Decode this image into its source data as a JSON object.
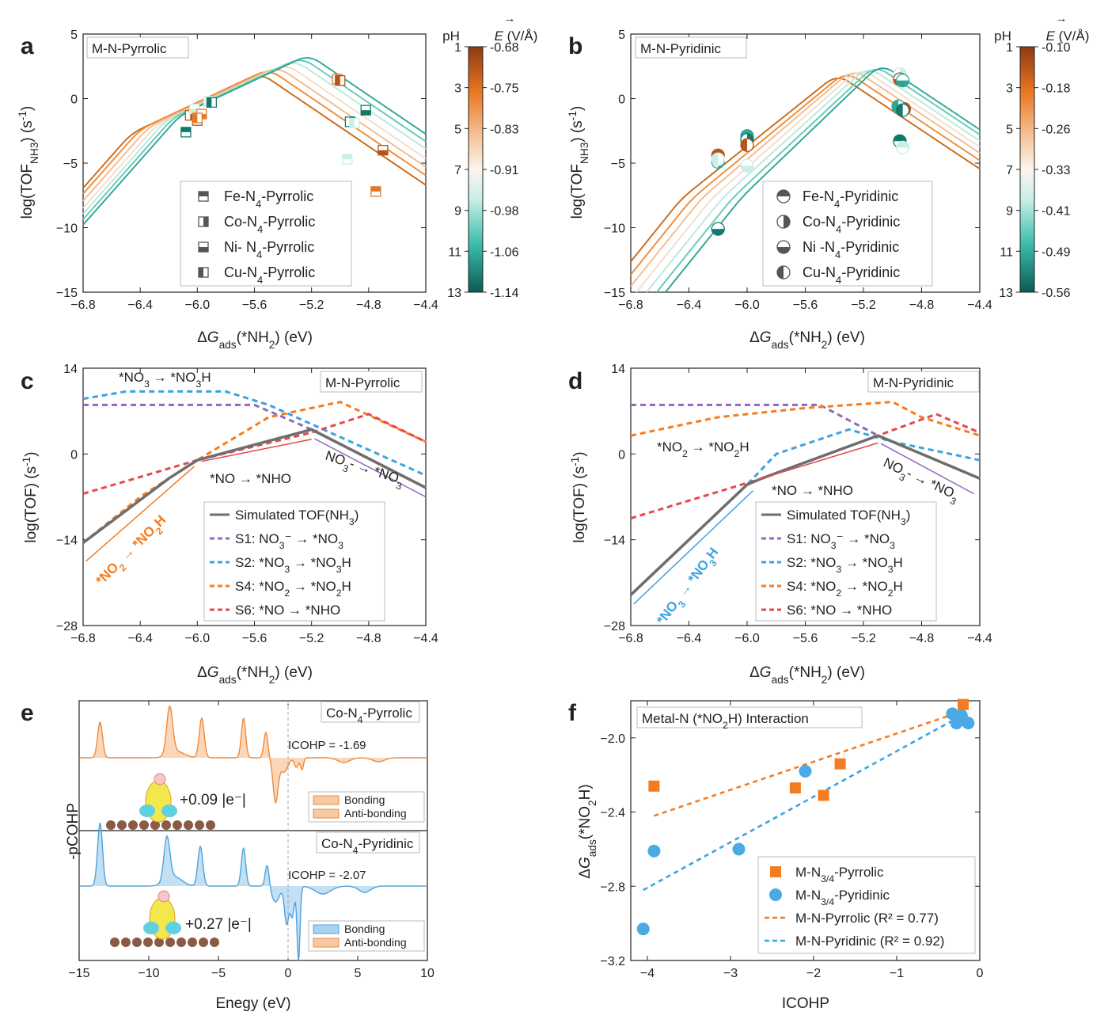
{
  "colors": {
    "orange": "#f47c20",
    "blue": "#3ba3e0",
    "purple": "#9467bd",
    "red": "#e5484d",
    "gray": "#6e6e6e",
    "teal_dark": "#137a6e",
    "brown": "#b5541c"
  },
  "panels": {
    "a": {
      "letter": "a",
      "label": "M-N-Pyrrolic",
      "ylabel_html": "log(TOF_NH3) (s^-1)",
      "xlabel": "ΔG_ads(*NH2) (eV)"
    },
    "b": {
      "letter": "b",
      "label": "M-N-Pyridinic",
      "ylabel_html": "log(TOF_NH3) (s^-1)",
      "xlabel": "ΔG_ads(*NH2) (eV)"
    },
    "c": {
      "letter": "c",
      "label": "M-N-Pyrrolic",
      "ylabel": "log(TOF) (s^-1)",
      "xlabel": "ΔG_ads(*NH2) (eV)"
    },
    "d": {
      "letter": "d",
      "label": "M-N-Pyridinic",
      "ylabel": "log(TOF) (s^-1)",
      "xlabel": "ΔG_ads(*NH2) (eV)"
    },
    "e": {
      "letter": "e",
      "ylabel": "-pCOHP",
      "xlabel": "Enegy (eV)",
      "top_label": "Co-N4-Pyrrolic",
      "bottom_label": "Co-N4-Pyridinic",
      "icohp_top": "ICOHP = -1.69",
      "icohp_bottom": "ICOHP = -2.07",
      "charge_top": "+0.09 |e⁻|",
      "charge_bottom": "+0.27 |e⁻|",
      "legend": [
        "Bonding",
        "Anti-bonding"
      ]
    },
    "f": {
      "letter": "f",
      "label": "Metal-N (*NO2H) Interaction",
      "ylabel": "ΔG_ads(*NO2H)",
      "xlabel": "ICOHP"
    }
  },
  "colorbar_a": {
    "ph_title": "pH",
    "e_title": "E (V/Å)",
    "ph": [
      "1",
      "3",
      "5",
      "7",
      "9",
      "11",
      "13"
    ],
    "e": [
      "-0.68",
      "-0.75",
      "-0.83",
      "-0.91",
      "-0.98",
      "-1.06",
      "-1.14"
    ]
  },
  "colorbar_b": {
    "ph_title": "pH",
    "e_title": "E (V/Å)",
    "ph": [
      "1",
      "3",
      "5",
      "7",
      "9",
      "11",
      "13"
    ],
    "e": [
      "-0.10",
      "-0.18",
      "-0.26",
      "-0.33",
      "-0.41",
      "-0.49",
      "-0.56"
    ]
  },
  "legend_a": [
    "Fe-N4-Pyrrolic",
    "Co-N4-Pyrrolic",
    "Ni- N4-Pyrrolic",
    "Cu-N4-Pyrrolic"
  ],
  "legend_b": [
    "Fe-N4-Pyridinic",
    "Co-N4-Pyridinic",
    "Ni -N4-Pyridinic",
    "Cu-N4-Pyridinic"
  ],
  "legend_cd": [
    "Simulated TOF(NH3)",
    "S1: NO3⁻ → *NO3",
    "S2: *NO3 → *NO3H",
    "S4: *NO2 → *NO2H",
    "S6: *NO → *NHO"
  ],
  "annotations_c": [
    "*NO3 → *NO3H",
    "*NO → *NHO",
    "NO3⁻ → *NO3",
    "*NO2 → *NO2H"
  ],
  "annotations_d": [
    "*NO2 → *NO2H",
    "*NO → *NHO",
    "NO3⁻ → *NO3",
    "*NO3 → *NO3H"
  ],
  "legend_f": [
    "M-N3/4-Pyrrolic",
    "M-N3/4-Pyridinic",
    "M-N-Pyrrolic (R² = 0.77)",
    "M-N-Pyridinic (R² = 0.92)"
  ],
  "chart_data": [
    {
      "panel": "a",
      "type": "line",
      "xlim": [
        -6.8,
        -4.4
      ],
      "ylim": [
        -15,
        5
      ],
      "xticks": [
        -6.8,
        -6.4,
        -6.0,
        -5.6,
        -5.2,
        -4.8,
        -4.4
      ],
      "yticks": [
        -15,
        -10,
        -5,
        0,
        5
      ],
      "series_description": "volcano curves for pH 1 to 13",
      "volcano_peaks": [
        [
          -5.56,
          2.0
        ],
        [
          -5.5,
          2.3
        ],
        [
          -5.44,
          2.5
        ],
        [
          -5.38,
          2.7
        ],
        [
          -5.32,
          3.0
        ],
        [
          -5.27,
          3.2
        ],
        [
          -5.22,
          3.4
        ]
      ],
      "points": {
        "Fe": [
          [
            -6.08,
            -2.6
          ],
          [
            -6.0,
            -1.7
          ],
          [
            -4.95,
            -4.7
          ],
          [
            -4.75,
            -7.2
          ]
        ],
        "Co": [
          [
            -6.05,
            -1.3
          ],
          [
            -5.92,
            -0.2
          ],
          [
            -5.02,
            1.5
          ],
          [
            -4.93,
            -1.8
          ]
        ],
        "Ni": [
          [
            -6.02,
            -0.8
          ],
          [
            -5.97,
            -1.2
          ],
          [
            -4.82,
            -0.9
          ],
          [
            -4.7,
            -4.0
          ]
        ],
        "Cu": [
          [
            -6.0,
            -1.5
          ],
          [
            -5.9,
            -0.3
          ],
          [
            -5.0,
            1.4
          ],
          [
            -4.9,
            -1.9
          ]
        ]
      }
    },
    {
      "panel": "b",
      "type": "line",
      "xlim": [
        -6.8,
        -4.4
      ],
      "ylim": [
        -15,
        5
      ],
      "xticks": [
        -6.8,
        -6.4,
        -6.0,
        -5.6,
        -5.2,
        -4.8,
        -4.4
      ],
      "yticks": [
        -15,
        -10,
        -5,
        0,
        5
      ],
      "volcano_peaks": [
        [
          -5.38,
          1.9
        ],
        [
          -5.32,
          2.1
        ],
        [
          -5.27,
          2.3
        ],
        [
          -5.22,
          2.4
        ],
        [
          -5.17,
          2.5
        ],
        [
          -5.12,
          2.6
        ],
        [
          -5.08,
          2.7
        ]
      ],
      "points": {
        "Fe": [
          [
            -6.2,
            -4.4
          ],
          [
            -6.0,
            -2.9
          ],
          [
            -4.95,
            -3.3
          ],
          [
            -4.93,
            -3.8
          ]
        ],
        "Co": [
          [
            -6.2,
            -4.9
          ],
          [
            -6.0,
            -3.2
          ],
          [
            -4.95,
            1.9
          ],
          [
            -4.92,
            -0.8
          ]
        ],
        "Ni": [
          [
            -6.2,
            -10.1
          ],
          [
            -6.0,
            -5.2
          ],
          [
            -4.95,
            1.5
          ],
          [
            -4.93,
            1.4
          ]
        ],
        "Cu": [
          [
            -6.2,
            -4.7
          ],
          [
            -6.0,
            -3.6
          ],
          [
            -4.96,
            -0.6
          ],
          [
            -4.93,
            -0.9
          ]
        ]
      }
    },
    {
      "panel": "c",
      "type": "line",
      "xlim": [
        -6.8,
        -4.4
      ],
      "ylim": [
        -28,
        14
      ],
      "xticks": [
        -6.8,
        -6.4,
        -6.0,
        -5.6,
        -5.2,
        -4.8,
        -4.4
      ],
      "yticks": [
        -28,
        -14,
        0,
        14
      ],
      "series": [
        {
          "name": "Simulated TOF(NH3)",
          "x": [
            -6.8,
            -6.6,
            -6.4,
            -6.2,
            -6.0,
            -5.6,
            -5.2,
            -4.4
          ],
          "y": [
            -14.5,
            -11.0,
            -7.5,
            -4.0,
            -1.0,
            1.5,
            4.0,
            -5.5
          ]
        },
        {
          "name": "S1: NO3⁻ → *NO3",
          "x": [
            -6.8,
            -5.6,
            -5.2,
            -4.4
          ],
          "y": [
            8.0,
            8.0,
            4.0,
            -5.5
          ]
        },
        {
          "name": "S2: *NO3 → *NO3H",
          "x": [
            -6.8,
            -6.5,
            -5.8,
            -5.5,
            -4.4
          ],
          "y": [
            9.0,
            10.2,
            10.2,
            8.0,
            -3.5
          ]
        },
        {
          "name": "S4: *NO2 → *NO2H",
          "x": [
            -6.8,
            -6.4,
            -6.0,
            -5.5,
            -5.0,
            -4.4
          ],
          "y": [
            -14.5,
            -7.0,
            -1.0,
            6.0,
            8.5,
            2.0
          ]
        },
        {
          "name": "S6: *NO → *NHO",
          "x": [
            -6.8,
            -6.0,
            -5.2,
            -4.8,
            -4.4
          ],
          "y": [
            -6.5,
            -1.0,
            3.5,
            6.5,
            2.0
          ]
        }
      ]
    },
    {
      "panel": "d",
      "type": "line",
      "xlim": [
        -6.8,
        -4.4
      ],
      "ylim": [
        -28,
        14
      ],
      "xticks": [
        -6.8,
        -6.4,
        -6.0,
        -5.6,
        -5.2,
        -4.8,
        -4.4
      ],
      "yticks": [
        -28,
        -14,
        0,
        14
      ],
      "series": [
        {
          "name": "Simulated TOF(NH3)",
          "x": [
            -6.8,
            -6.4,
            -6.0,
            -5.9,
            -5.1,
            -4.4
          ],
          "y": [
            -23.0,
            -14.0,
            -5.0,
            -4.0,
            3.0,
            -4.0
          ]
        },
        {
          "name": "S1: NO3⁻ → *NO3",
          "x": [
            -6.8,
            -5.5,
            -5.1,
            -4.4
          ],
          "y": [
            8.0,
            8.0,
            3.0,
            -4.0
          ]
        },
        {
          "name": "S2: *NO3 → *NO3H",
          "x": [
            -6.8,
            -6.4,
            -6.0,
            -5.8,
            -5.3,
            -5.0,
            -4.4
          ],
          "y": [
            -23.0,
            -14.0,
            -5.0,
            0.0,
            4.0,
            2.0,
            -1.0
          ]
        },
        {
          "name": "S4: *NO2 → *NO2H",
          "x": [
            -6.8,
            -6.2,
            -5.6,
            -5.0,
            -4.8,
            -4.4
          ],
          "y": [
            3.0,
            6.0,
            7.5,
            8.5,
            6.0,
            3.0
          ]
        },
        {
          "name": "S6: *NO → *NHO",
          "x": [
            -6.8,
            -5.9,
            -5.1,
            -4.7,
            -4.4
          ],
          "y": [
            -10.5,
            -4.0,
            3.0,
            6.5,
            3.5
          ]
        }
      ]
    },
    {
      "panel": "e",
      "type": "area",
      "xlim": [
        -15,
        10
      ],
      "xticks": [
        -15,
        -10,
        -5,
        0,
        5,
        10
      ],
      "series": [
        {
          "name": "Co-N4-Pyrrolic peaks",
          "x": [
            -13.5,
            -8.5,
            -6.2,
            -3.2,
            -1.2,
            0.7,
            1.0
          ],
          "y": [
            0.8,
            0.9,
            0.8,
            0.7,
            0.5,
            -1.0,
            -0.3
          ]
        },
        {
          "name": "Co-N4-Pyridinic peaks",
          "x": [
            -13.5,
            -8.7,
            -6.3,
            -3.2,
            -1.5,
            -0.4,
            0.3,
            0.7
          ],
          "y": [
            0.85,
            0.55,
            0.5,
            0.55,
            0.3,
            -0.6,
            -0.5,
            -1.1
          ]
        }
      ]
    },
    {
      "panel": "f",
      "type": "scatter",
      "xlim": [
        -4.2,
        0
      ],
      "ylim": [
        -3.2,
        -1.8
      ],
      "xticks": [
        -4,
        -3,
        -2,
        -1,
        0
      ],
      "yticks": [
        -3.2,
        -2.8,
        -2.4,
        -2.0
      ],
      "series": [
        {
          "name": "M-N3/4-Pyrrolic",
          "x": [
            -3.92,
            -2.22,
            -1.88,
            -1.68,
            -0.2
          ],
          "y": [
            -2.26,
            -2.27,
            -2.31,
            -2.14,
            -1.82
          ]
        },
        {
          "name": "M-N3/4-Pyridinic",
          "x": [
            -4.05,
            -3.92,
            -2.9,
            -2.1,
            -0.33,
            -0.28,
            -0.22,
            -0.14
          ],
          "y": [
            -3.03,
            -2.61,
            -2.6,
            -2.18,
            -1.87,
            -1.92,
            -1.88,
            -1.92
          ]
        },
        {
          "name": "M-N-Pyrrolic (R² = 0.77)",
          "type": "line",
          "x": [
            -3.92,
            -0.3
          ],
          "y": [
            -2.42,
            -1.87
          ]
        },
        {
          "name": "M-N-Pyridinic (R² = 0.92)",
          "type": "line",
          "x": [
            -4.05,
            -0.3
          ],
          "y": [
            -2.82,
            -1.9
          ]
        }
      ]
    }
  ]
}
